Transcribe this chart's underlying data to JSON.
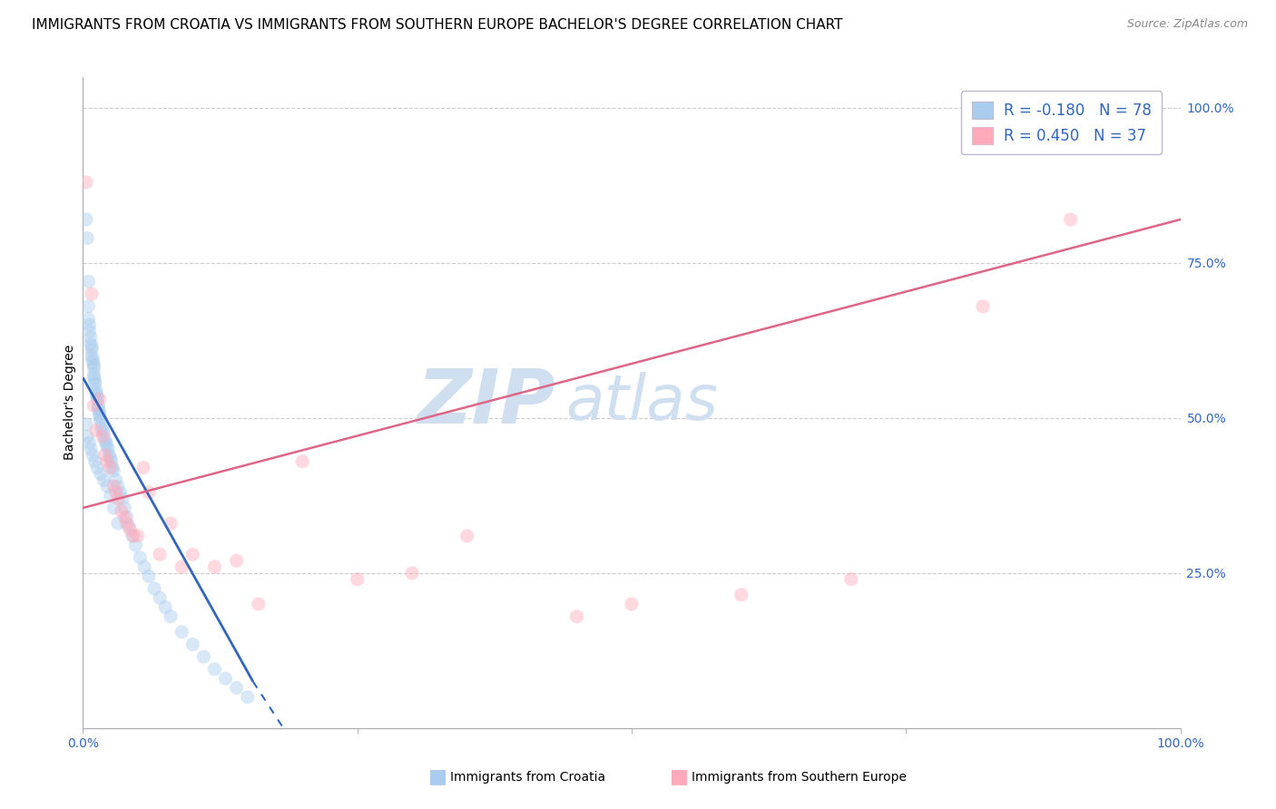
{
  "title": "IMMIGRANTS FROM CROATIA VS IMMIGRANTS FROM SOUTHERN EUROPE BACHELOR'S DEGREE CORRELATION CHART",
  "source": "Source: ZipAtlas.com",
  "ylabel": "Bachelor's Degree",
  "watermark_zip": "ZIP",
  "watermark_atlas": "atlas",
  "watermark_color": "#d0dff0",
  "legend_1_color": "#aaccee",
  "legend_1_edge": "#aaccee",
  "legend_2_color": "#ffaabb",
  "legend_2_edge": "#ffaabb",
  "line_1_color": "#3366bb",
  "line_2_color": "#dd6688",
  "blue_color": "#3366bb",
  "background_color": "#ffffff",
  "grid_color": "#cccccc",
  "r1": "-0.180",
  "n1": "78",
  "r2": "0.450",
  "n2": "37",
  "xlim": [
    0.0,
    1.0
  ],
  "ylim": [
    0.0,
    1.05
  ],
  "title_fontsize": 11,
  "marker_size": 120,
  "marker_alpha": 0.45,
  "croatia_x": [
    0.003,
    0.004,
    0.005,
    0.005,
    0.005,
    0.006,
    0.006,
    0.007,
    0.007,
    0.008,
    0.008,
    0.008,
    0.009,
    0.009,
    0.01,
    0.01,
    0.01,
    0.01,
    0.011,
    0.011,
    0.012,
    0.012,
    0.013,
    0.013,
    0.014,
    0.014,
    0.015,
    0.015,
    0.016,
    0.016,
    0.017,
    0.018,
    0.019,
    0.02,
    0.021,
    0.022,
    0.023,
    0.024,
    0.025,
    0.026,
    0.027,
    0.028,
    0.03,
    0.032,
    0.034,
    0.036,
    0.038,
    0.04,
    0.042,
    0.045,
    0.048,
    0.052,
    0.056,
    0.06,
    0.065,
    0.07,
    0.075,
    0.08,
    0.09,
    0.1,
    0.11,
    0.12,
    0.13,
    0.14,
    0.15,
    0.003,
    0.004,
    0.006,
    0.007,
    0.009,
    0.011,
    0.013,
    0.016,
    0.019,
    0.022,
    0.025,
    0.028,
    0.032
  ],
  "croatia_y": [
    0.82,
    0.79,
    0.72,
    0.68,
    0.66,
    0.65,
    0.64,
    0.63,
    0.62,
    0.615,
    0.61,
    0.6,
    0.595,
    0.59,
    0.585,
    0.58,
    0.57,
    0.565,
    0.56,
    0.555,
    0.545,
    0.54,
    0.535,
    0.53,
    0.52,
    0.515,
    0.51,
    0.505,
    0.5,
    0.495,
    0.485,
    0.48,
    0.475,
    0.465,
    0.46,
    0.455,
    0.45,
    0.44,
    0.435,
    0.43,
    0.42,
    0.415,
    0.4,
    0.39,
    0.38,
    0.37,
    0.355,
    0.34,
    0.325,
    0.31,
    0.295,
    0.275,
    0.26,
    0.245,
    0.225,
    0.21,
    0.195,
    0.18,
    0.155,
    0.135,
    0.115,
    0.095,
    0.08,
    0.065,
    0.05,
    0.49,
    0.47,
    0.46,
    0.45,
    0.44,
    0.43,
    0.42,
    0.41,
    0.4,
    0.39,
    0.375,
    0.355,
    0.33
  ],
  "se_x": [
    0.003,
    0.008,
    0.01,
    0.012,
    0.015,
    0.018,
    0.02,
    0.022,
    0.025,
    0.028,
    0.03,
    0.032,
    0.035,
    0.038,
    0.04,
    0.043,
    0.046,
    0.05,
    0.055,
    0.06,
    0.07,
    0.08,
    0.09,
    0.1,
    0.12,
    0.14,
    0.16,
    0.2,
    0.25,
    0.3,
    0.35,
    0.45,
    0.5,
    0.6,
    0.7,
    0.82,
    0.9
  ],
  "se_y": [
    0.88,
    0.7,
    0.52,
    0.48,
    0.53,
    0.47,
    0.44,
    0.43,
    0.42,
    0.39,
    0.38,
    0.37,
    0.35,
    0.34,
    0.33,
    0.32,
    0.31,
    0.31,
    0.42,
    0.38,
    0.28,
    0.33,
    0.26,
    0.28,
    0.26,
    0.27,
    0.2,
    0.43,
    0.24,
    0.25,
    0.31,
    0.18,
    0.2,
    0.215,
    0.24,
    0.68,
    0.82
  ]
}
